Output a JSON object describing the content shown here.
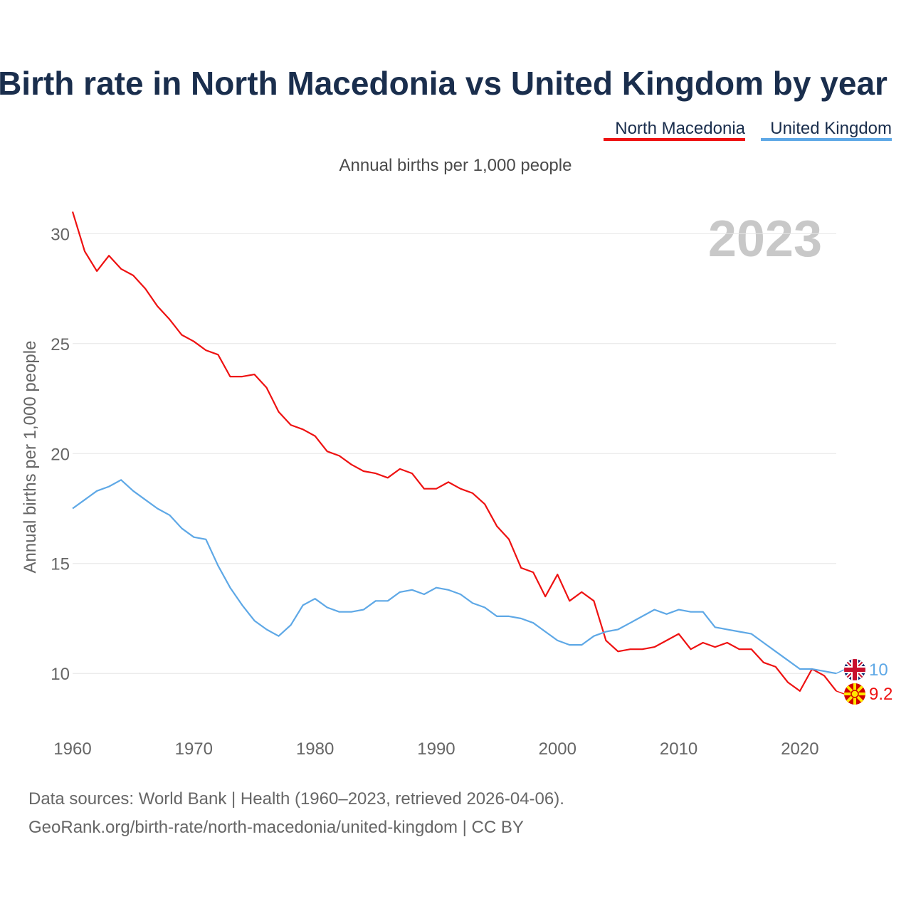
{
  "chart_data": {
    "type": "line",
    "title": "Birth rate in North Macedonia vs United Kingdom by year",
    "subtitle": "Annual births per 1,000 people",
    "ylabel": "Annual births per 1,000 people",
    "xlabel": "",
    "year_label": "2023",
    "xlim": [
      1960,
      2023
    ],
    "ylim": [
      8,
      31.5
    ],
    "x_ticks": [
      1960,
      1970,
      1980,
      1990,
      2000,
      2010,
      2020
    ],
    "y_ticks": [
      10,
      15,
      20,
      25,
      30
    ],
    "x": [
      1960,
      1961,
      1962,
      1963,
      1964,
      1965,
      1966,
      1967,
      1968,
      1969,
      1970,
      1971,
      1972,
      1973,
      1974,
      1975,
      1976,
      1977,
      1978,
      1979,
      1980,
      1981,
      1982,
      1983,
      1984,
      1985,
      1986,
      1987,
      1988,
      1989,
      1990,
      1991,
      1992,
      1993,
      1994,
      1995,
      1996,
      1997,
      1998,
      1999,
      2000,
      2001,
      2002,
      2003,
      2004,
      2005,
      2006,
      2007,
      2008,
      2009,
      2010,
      2011,
      2012,
      2013,
      2014,
      2015,
      2016,
      2017,
      2018,
      2019,
      2020,
      2021,
      2022,
      2023
    ],
    "series": [
      {
        "name": "North Macedonia",
        "color": "#ee1111",
        "end_label": "9.2",
        "values": [
          31.0,
          29.2,
          28.3,
          29.0,
          28.4,
          28.1,
          27.5,
          26.7,
          26.1,
          25.4,
          25.1,
          24.7,
          24.5,
          23.5,
          23.5,
          23.6,
          23.0,
          21.9,
          21.3,
          21.1,
          20.8,
          20.1,
          19.9,
          19.5,
          19.2,
          19.1,
          18.9,
          19.3,
          19.1,
          18.4,
          18.4,
          18.7,
          18.4,
          18.2,
          17.7,
          16.7,
          16.1,
          14.8,
          14.6,
          13.5,
          14.5,
          13.3,
          13.7,
          13.3,
          11.5,
          11.0,
          11.1,
          11.1,
          11.2,
          11.5,
          11.8,
          11.1,
          11.4,
          11.2,
          11.4,
          11.1,
          11.1,
          10.5,
          10.3,
          9.6,
          9.2,
          10.2,
          9.9,
          9.2
        ]
      },
      {
        "name": "United Kingdom",
        "color": "#5ea8e6",
        "end_label": "10",
        "values": [
          17.5,
          17.9,
          18.3,
          18.5,
          18.8,
          18.3,
          17.9,
          17.5,
          17.2,
          16.6,
          16.2,
          16.1,
          14.9,
          13.9,
          13.1,
          12.4,
          12.0,
          11.7,
          12.2,
          13.1,
          13.4,
          13.0,
          12.8,
          12.8,
          12.9,
          13.3,
          13.3,
          13.7,
          13.8,
          13.6,
          13.9,
          13.8,
          13.6,
          13.2,
          13.0,
          12.6,
          12.6,
          12.5,
          12.3,
          11.9,
          11.5,
          11.3,
          11.3,
          11.7,
          11.9,
          12.0,
          12.3,
          12.6,
          12.9,
          12.7,
          12.9,
          12.8,
          12.8,
          12.1,
          12.0,
          11.9,
          11.8,
          11.4,
          11.0,
          10.6,
          10.2,
          10.2,
          10.1,
          10.0
        ]
      }
    ],
    "legend": [
      "North Macedonia",
      "United Kingdom"
    ],
    "legend_position": "top-right",
    "grid": true
  },
  "footer": {
    "sources": "Data sources: World Bank | Health (1960–2023, retrieved 2026-04-06).",
    "attribution": "GeoRank.org/birth-rate/north-macedonia/united-kingdom | CC BY"
  }
}
